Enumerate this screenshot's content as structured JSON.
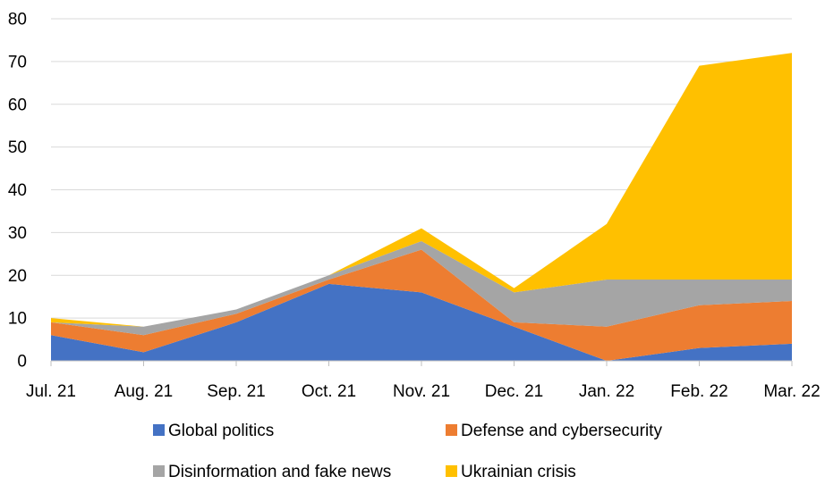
{
  "chart_data": {
    "type": "area",
    "stacked": true,
    "title": "",
    "xlabel": "",
    "ylabel": "",
    "categories": [
      "Jul. 21",
      "Aug. 21",
      "Sep. 21",
      "Oct. 21",
      "Nov. 21",
      "Dec. 21",
      "Jan. 22",
      "Feb. 22",
      "Mar. 22"
    ],
    "ylim": [
      0,
      80
    ],
    "yticks": [
      0,
      10,
      20,
      30,
      40,
      50,
      60,
      70,
      80
    ],
    "grid": true,
    "legend_position": "bottom",
    "series": [
      {
        "name": "Global politics",
        "color": "#4472c4",
        "values": [
          6,
          2,
          9,
          18,
          16,
          8,
          0,
          3,
          4
        ]
      },
      {
        "name": "Defense and cybersecurity",
        "color": "#ed7d31",
        "values": [
          3,
          4,
          2,
          1,
          10,
          1,
          8,
          10,
          10
        ]
      },
      {
        "name": "Disinformation and fake news",
        "color": "#a5a5a5",
        "values": [
          0,
          2,
          1,
          1,
          2,
          7,
          11,
          6,
          5
        ]
      },
      {
        "name": "Ukrainian crisis",
        "color": "#ffc000",
        "values": [
          1,
          0,
          0,
          0,
          3,
          1,
          13,
          50,
          53
        ]
      }
    ]
  }
}
